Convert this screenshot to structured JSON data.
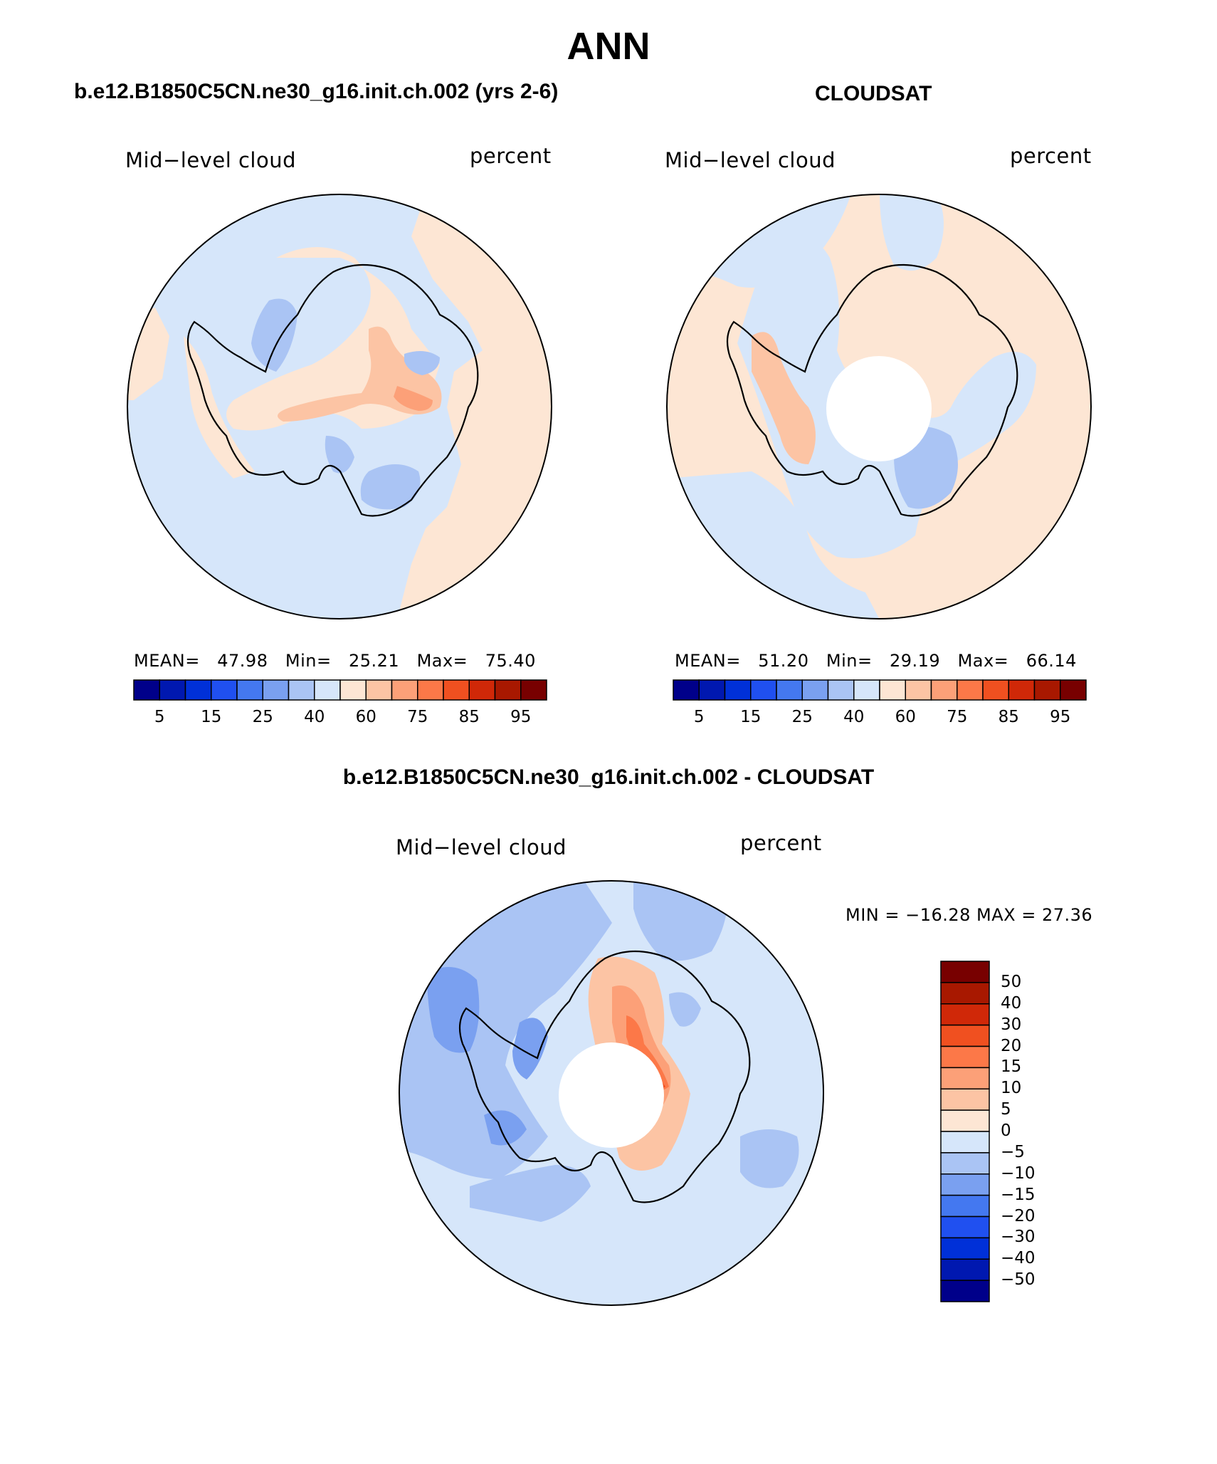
{
  "page": {
    "title": "ANN",
    "diff_title": "b.e12.B1850C5CN.ne30_g16.init.ch.002 - CLOUDSAT"
  },
  "panels": [
    {
      "id": "model",
      "header": "b.e12.B1850C5CN.ne30_g16.init.ch.002 (yrs 2-6)",
      "variable": "Mid−level cloud",
      "units": "percent",
      "stats": {
        "mean_label": "MEAN=",
        "mean": "47.98",
        "min_label": "Min=",
        "min": "25.21",
        "max_label": "Max=",
        "max": "75.40"
      }
    },
    {
      "id": "obs",
      "header": "CLOUDSAT",
      "variable": "Mid−level cloud",
      "units": "percent",
      "stats": {
        "mean_label": "MEAN=",
        "mean": "51.20",
        "min_label": "Min=",
        "min": "29.19",
        "max_label": "Max=",
        "max": "66.14"
      }
    },
    {
      "id": "diff",
      "header": "b.e12.B1850C5CN.ne30_g16.init.ch.002 - CLOUDSAT",
      "variable": "Mid−level cloud",
      "units": "percent",
      "stats_text": "MIN = −16.28 MAX =   27.36"
    }
  ],
  "colorbar_horizontal": {
    "colors": [
      "#00008a",
      "#0018b0",
      "#0030d8",
      "#2050f0",
      "#4478f0",
      "#7aa0f0",
      "#aac4f4",
      "#d6e6fa",
      "#fde6d4",
      "#fcc4a4",
      "#fca078",
      "#fc7848",
      "#f05020",
      "#d02808",
      "#a81800",
      "#780000"
    ],
    "tick_labels": [
      "5",
      "15",
      "25",
      "40",
      "60",
      "75",
      "85",
      "95"
    ]
  },
  "colorbar_vertical": {
    "colors_top_to_bottom": [
      "#780000",
      "#a81800",
      "#d02808",
      "#f05020",
      "#fc7848",
      "#fca078",
      "#fcc4a4",
      "#fde6d4",
      "#d6e6fa",
      "#aac4f4",
      "#7aa0f0",
      "#4478f0",
      "#2050f0",
      "#0030d8",
      "#0018b0",
      "#00008a"
    ],
    "tick_labels": [
      "50",
      "40",
      "30",
      "20",
      "15",
      "10",
      "5",
      "0",
      "−5",
      "−10",
      "−15",
      "−20",
      "−30",
      "−40",
      "−50"
    ]
  },
  "map_colors": {
    "light_blue": "#d6e6fa",
    "blue2": "#aac4f4",
    "blue3": "#7aa0f0",
    "blue4": "#4478f0",
    "peach": "#fde6d4",
    "salmon": "#fcc4a4",
    "orange": "#fca078",
    "orange2": "#fc7848",
    "red": "#f05020"
  }
}
